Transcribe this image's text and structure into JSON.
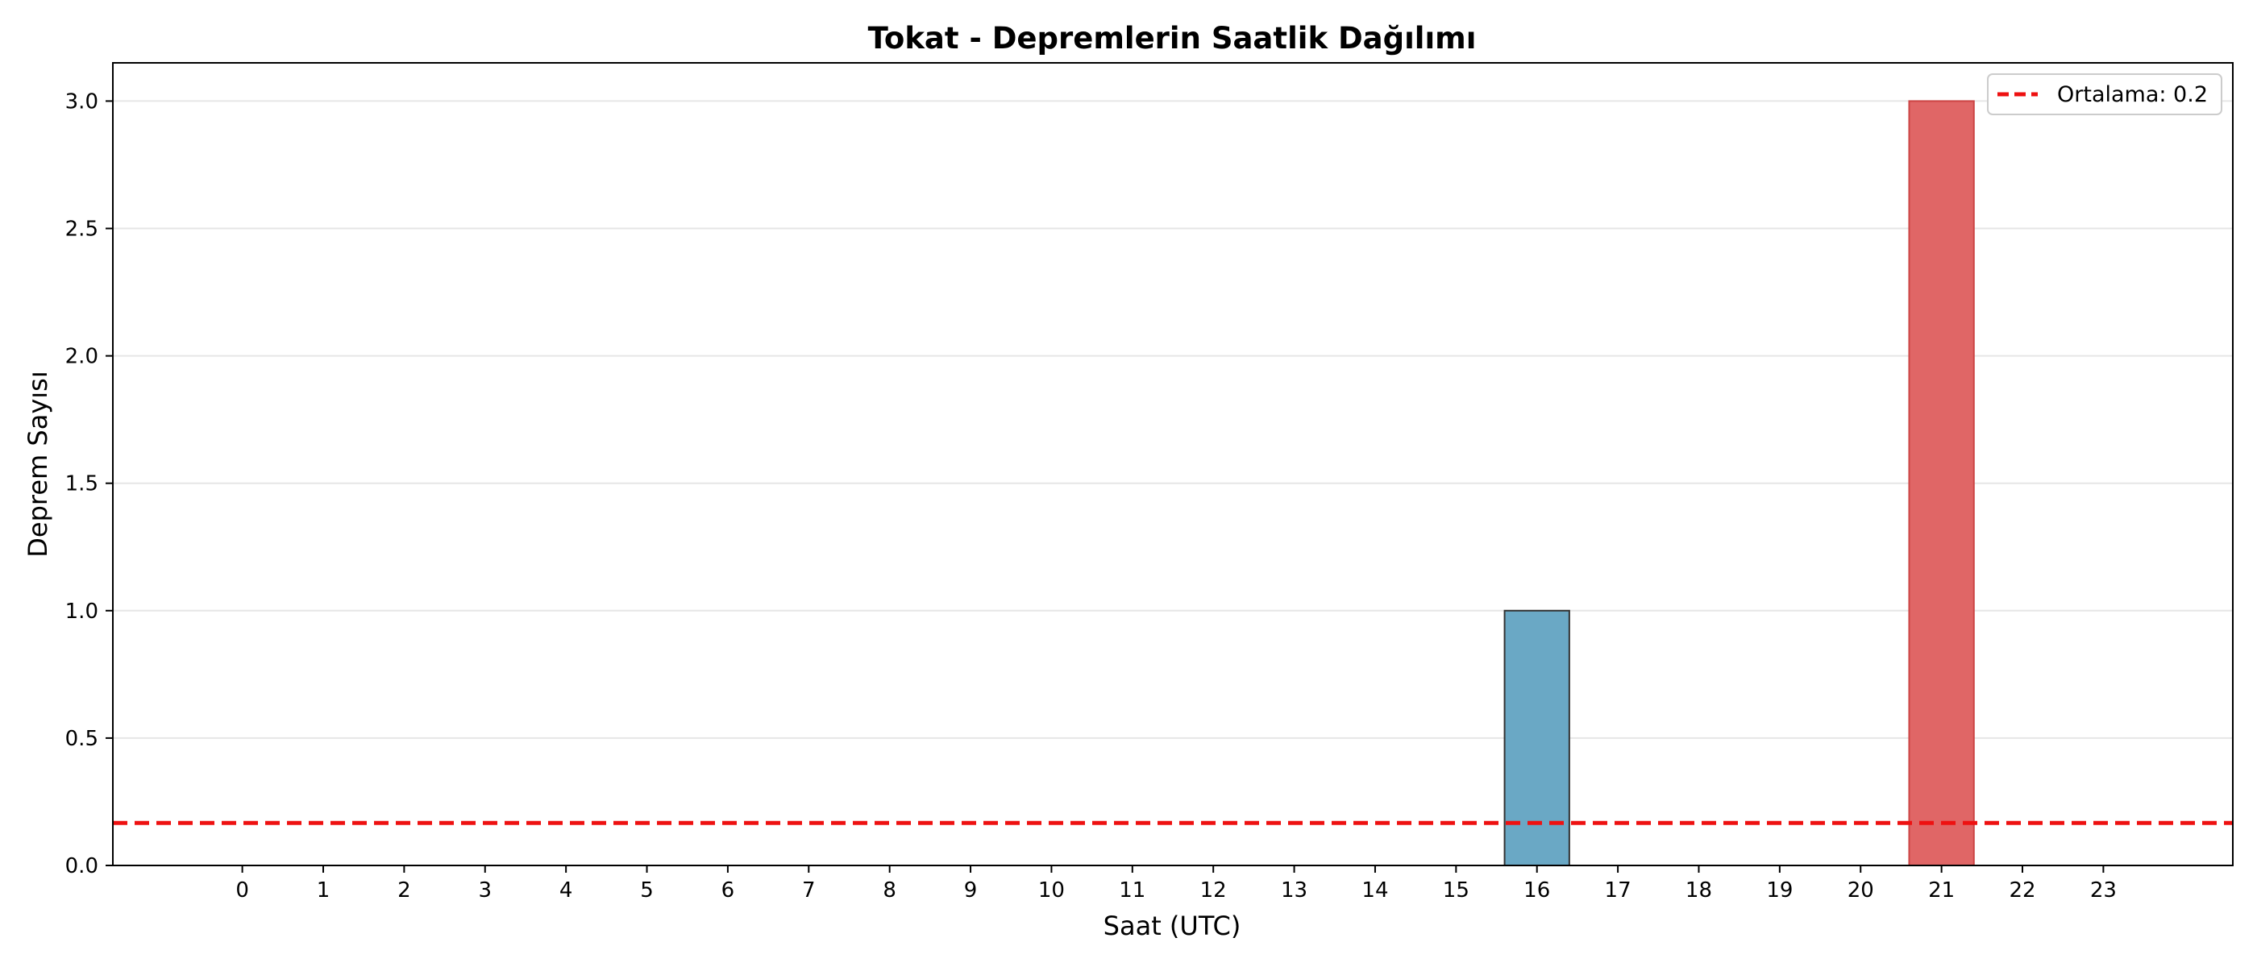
{
  "chart_data": {
    "type": "bar",
    "title": "Tokat - Depremlerin Saatlik Dağılımı",
    "xlabel": "Saat (UTC)",
    "ylabel": "Deprem Sayısı",
    "categories": [
      "0",
      "1",
      "2",
      "3",
      "4",
      "5",
      "6",
      "7",
      "8",
      "9",
      "10",
      "11",
      "12",
      "13",
      "14",
      "15",
      "16",
      "17",
      "18",
      "19",
      "20",
      "21",
      "22",
      "23"
    ],
    "values": [
      0,
      0,
      0,
      0,
      0,
      0,
      0,
      0,
      0,
      0,
      0,
      0,
      0,
      0,
      0,
      0,
      1,
      0,
      0,
      0,
      0,
      3,
      0,
      0
    ],
    "ylim": [
      0,
      3.15
    ],
    "yticks": [
      "0.0",
      "0.5",
      "1.0",
      "1.5",
      "2.0",
      "2.5",
      "3.0"
    ],
    "grid": "y",
    "legend_position": "top-right",
    "mean_line": {
      "label": "Ortalama: 0.2",
      "value": 0.167,
      "color": "#ee1111",
      "style": "dashed"
    },
    "colors": {
      "normal": "#6aa8c5",
      "max": "#e06666",
      "normal_edge": "#333333",
      "max_edge": "#cc4444"
    }
  }
}
